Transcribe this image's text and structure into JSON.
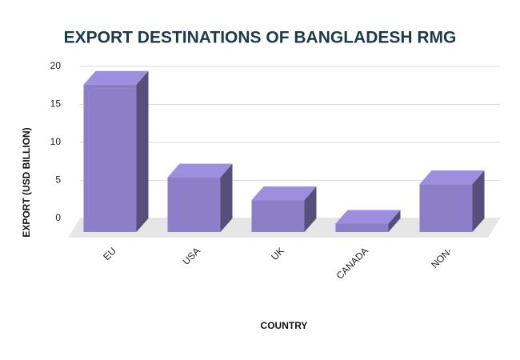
{
  "chart_data": {
    "type": "bar3d",
    "title": "EXPORT DESTINATIONS OF BANGLADESH RMG",
    "x_label": "COUNTRY",
    "y_label": "EXPORT (USD BILLION)",
    "categories": [
      "EU",
      "USA",
      "UK",
      "CANADA",
      "NON-"
    ],
    "values": [
      19.4,
      7.2,
      4.2,
      1.1,
      6.3
    ],
    "color": "#8d7fc7",
    "ylim": [
      0,
      20
    ],
    "yticks": [
      0,
      5,
      10,
      15,
      20
    ],
    "grid": true
  }
}
